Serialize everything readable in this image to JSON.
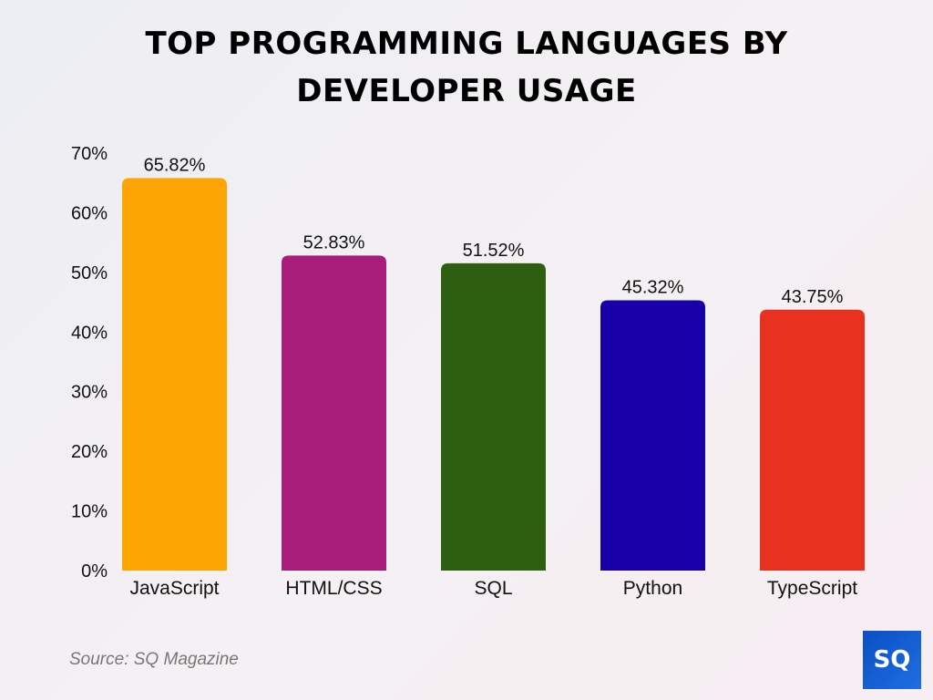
{
  "chart_data": {
    "type": "bar",
    "title": "TOP PROGRAMMING LANGUAGES BY DEVELOPER USAGE",
    "categories": [
      "JavaScript",
      "HTML/CSS",
      "SQL",
      "Python",
      "TypeScript"
    ],
    "values": [
      65.82,
      52.83,
      51.52,
      45.32,
      43.75
    ],
    "data_labels": [
      "65.82%",
      "52.83%",
      "51.52%",
      "45.32%",
      "43.75%"
    ],
    "colors": [
      "#FCA503",
      "#A91E7A",
      "#2E5E10",
      "#1800A8",
      "#E8321F"
    ],
    "yticks": [
      "0%",
      "10%",
      "20%",
      "30%",
      "40%",
      "50%",
      "60%",
      "70%"
    ],
    "ylim": [
      0,
      70
    ],
    "grid": false,
    "xlabel": "",
    "ylabel": ""
  },
  "source": "Source: SQ Magazine",
  "logo_text": "SQ"
}
